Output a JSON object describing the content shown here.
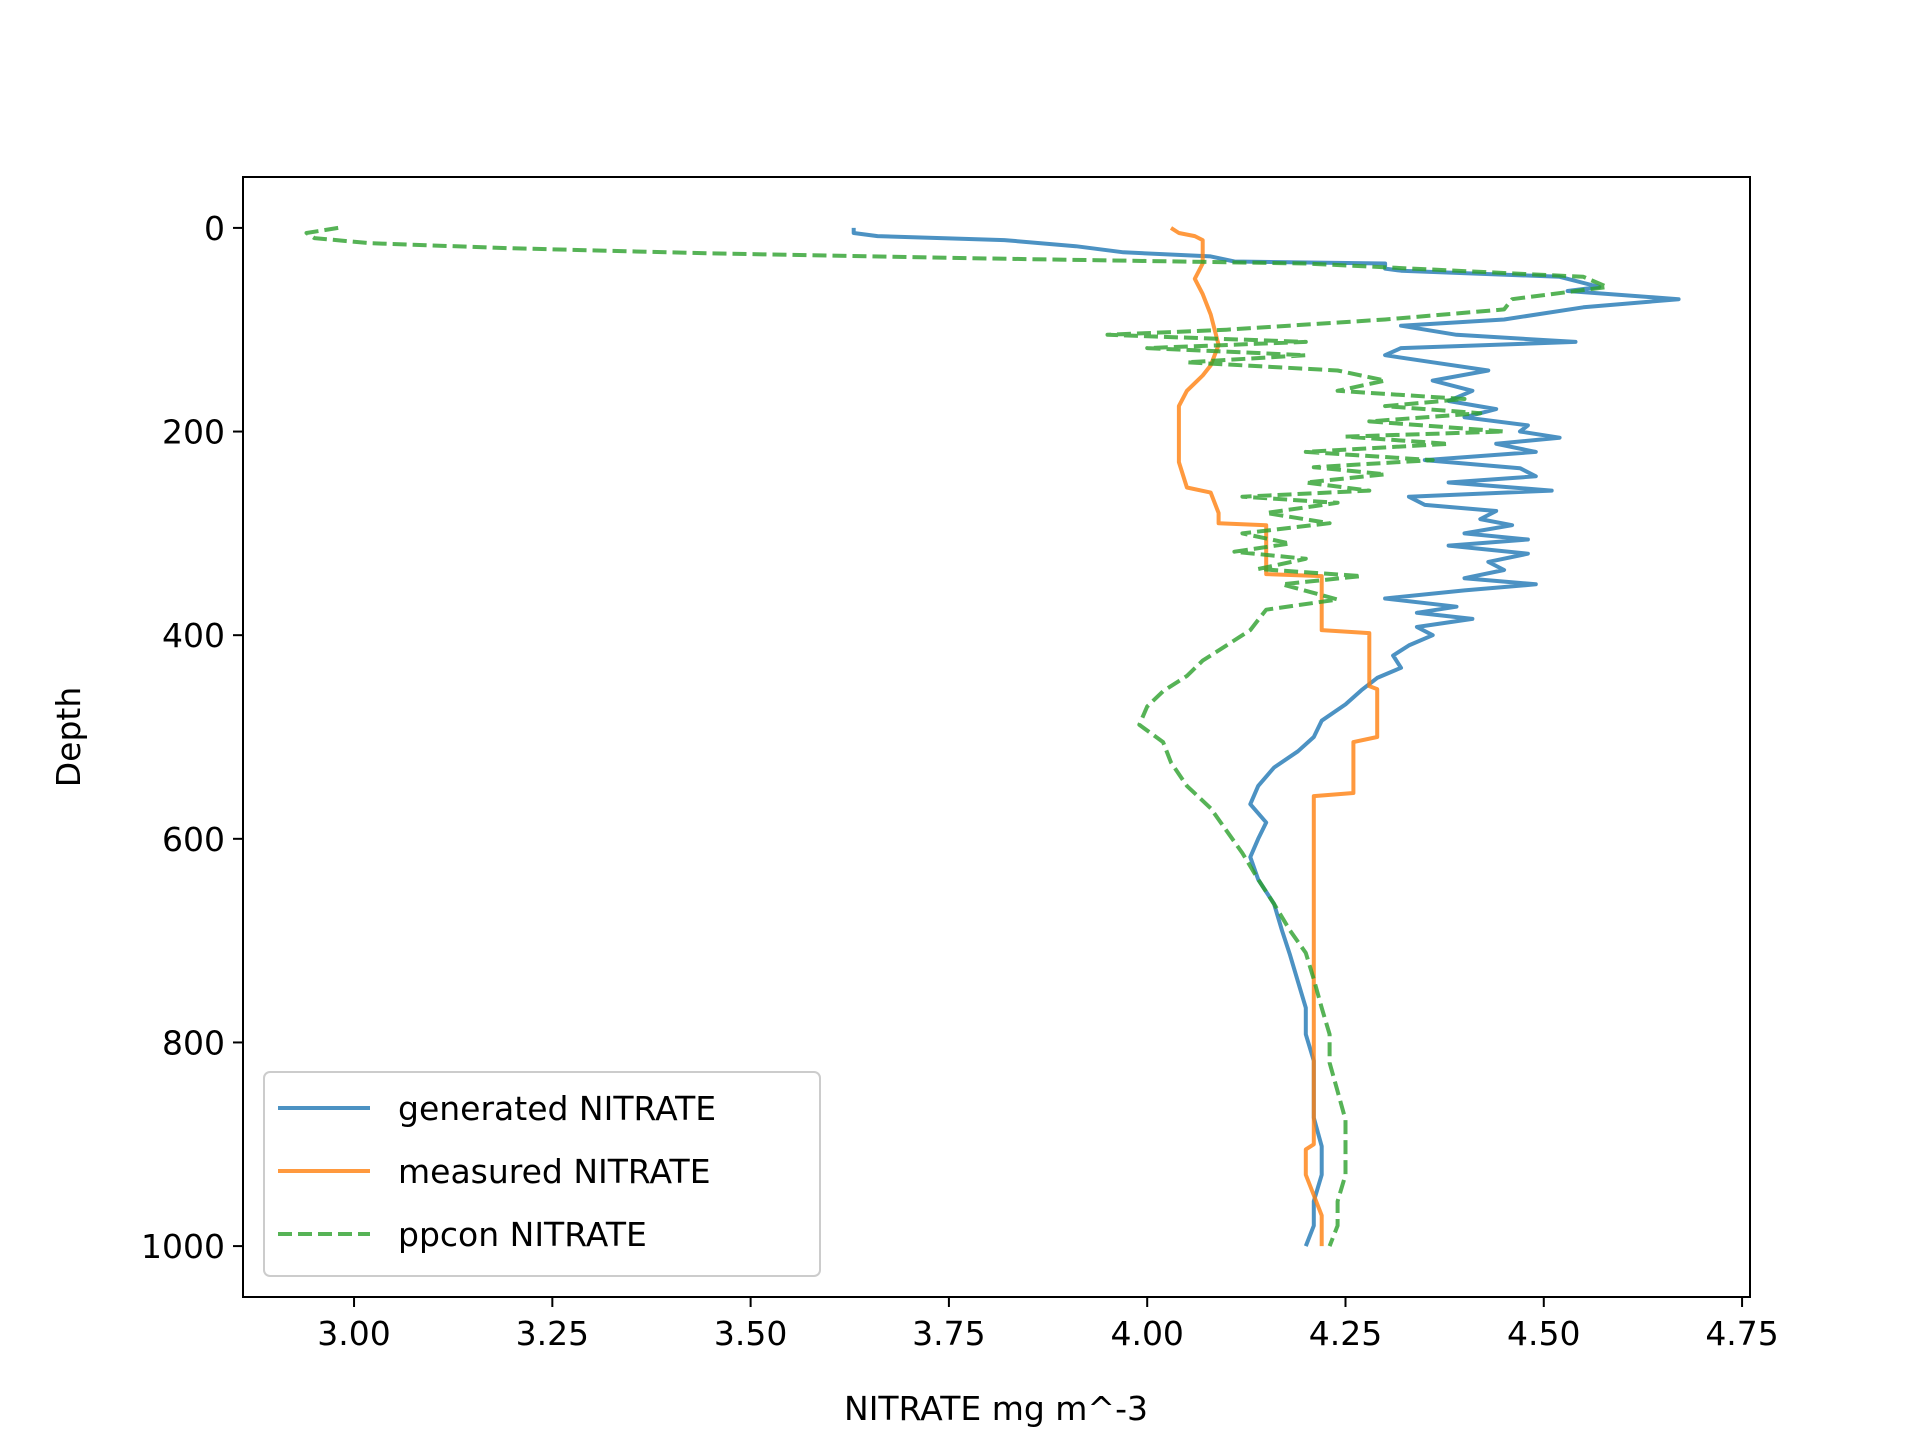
{
  "chart_data": {
    "type": "line",
    "xlabel": "NITRATE mg m^-3",
    "ylabel": "Depth",
    "xlim": [
      2.86,
      4.76
    ],
    "ylim": [
      1050,
      -50
    ],
    "y_inverted": true,
    "x_ticks": [
      3.0,
      3.25,
      3.5,
      3.75,
      4.0,
      4.25,
      4.5,
      4.75
    ],
    "x_tick_labels": [
      "3.00",
      "3.25",
      "3.50",
      "3.75",
      "4.00",
      "4.25",
      "4.50",
      "4.75"
    ],
    "y_ticks": [
      0,
      200,
      400,
      600,
      800,
      1000
    ],
    "y_tick_labels": [
      "0",
      "200",
      "400",
      "600",
      "800",
      "1000"
    ],
    "grid": false,
    "legend_position": "lower-left",
    "series": [
      {
        "name": "generated NITRATE",
        "color": "#1f77b4",
        "dash": "solid",
        "points": [
          [
            3.63,
            0
          ],
          [
            3.63,
            5
          ],
          [
            3.66,
            8
          ],
          [
            3.74,
            10
          ],
          [
            3.82,
            12
          ],
          [
            3.91,
            18
          ],
          [
            3.97,
            24
          ],
          [
            4.08,
            28
          ],
          [
            4.11,
            33
          ],
          [
            4.3,
            35
          ],
          [
            4.3,
            40
          ],
          [
            4.32,
            42
          ],
          [
            4.52,
            48
          ],
          [
            4.57,
            58
          ],
          [
            4.53,
            62
          ],
          [
            4.67,
            70
          ],
          [
            4.55,
            78
          ],
          [
            4.45,
            90
          ],
          [
            4.32,
            96
          ],
          [
            4.39,
            105
          ],
          [
            4.54,
            112
          ],
          [
            4.32,
            118
          ],
          [
            4.3,
            125
          ],
          [
            4.36,
            132
          ],
          [
            4.43,
            140
          ],
          [
            4.36,
            150
          ],
          [
            4.41,
            160
          ],
          [
            4.38,
            170
          ],
          [
            4.44,
            178
          ],
          [
            4.4,
            186
          ],
          [
            4.48,
            194
          ],
          [
            4.47,
            200
          ],
          [
            4.52,
            206
          ],
          [
            4.44,
            212
          ],
          [
            4.49,
            220
          ],
          [
            4.35,
            228
          ],
          [
            4.47,
            236
          ],
          [
            4.49,
            244
          ],
          [
            4.38,
            250
          ],
          [
            4.51,
            258
          ],
          [
            4.33,
            264
          ],
          [
            4.35,
            272
          ],
          [
            4.44,
            278
          ],
          [
            4.42,
            286
          ],
          [
            4.46,
            292
          ],
          [
            4.4,
            300
          ],
          [
            4.48,
            306
          ],
          [
            4.38,
            312
          ],
          [
            4.48,
            320
          ],
          [
            4.43,
            328
          ],
          [
            4.45,
            336
          ],
          [
            4.4,
            344
          ],
          [
            4.49,
            350
          ],
          [
            4.4,
            356
          ],
          [
            4.3,
            364
          ],
          [
            4.39,
            372
          ],
          [
            4.34,
            378
          ],
          [
            4.41,
            384
          ],
          [
            4.34,
            392
          ],
          [
            4.36,
            400
          ],
          [
            4.33,
            410
          ],
          [
            4.31,
            420
          ],
          [
            4.32,
            432
          ],
          [
            4.29,
            442
          ],
          [
            4.27,
            454
          ],
          [
            4.25,
            468
          ],
          [
            4.22,
            484
          ],
          [
            4.21,
            500
          ],
          [
            4.19,
            514
          ],
          [
            4.16,
            530
          ],
          [
            4.14,
            548
          ],
          [
            4.13,
            566
          ],
          [
            4.15,
            584
          ],
          [
            4.14,
            600
          ],
          [
            4.13,
            618
          ],
          [
            4.14,
            640
          ],
          [
            4.16,
            664
          ],
          [
            4.17,
            690
          ],
          [
            4.18,
            714
          ],
          [
            4.19,
            740
          ],
          [
            4.2,
            766
          ],
          [
            4.2,
            792
          ],
          [
            4.21,
            818
          ],
          [
            4.21,
            846
          ],
          [
            4.21,
            874
          ],
          [
            4.22,
            902
          ],
          [
            4.22,
            930
          ],
          [
            4.21,
            956
          ],
          [
            4.21,
            980
          ],
          [
            4.2,
            1000
          ]
        ]
      },
      {
        "name": "measured NITRATE",
        "color": "#ff7f0e",
        "dash": "solid",
        "points": [
          [
            4.03,
            0
          ],
          [
            4.04,
            5
          ],
          [
            4.06,
            8
          ],
          [
            4.07,
            12
          ],
          [
            4.07,
            35
          ],
          [
            4.06,
            50
          ],
          [
            4.07,
            65
          ],
          [
            4.08,
            85
          ],
          [
            4.09,
            115
          ],
          [
            4.08,
            135
          ],
          [
            4.07,
            145
          ],
          [
            4.05,
            160
          ],
          [
            4.04,
            175
          ],
          [
            4.04,
            210
          ],
          [
            4.04,
            230
          ],
          [
            4.05,
            255
          ],
          [
            4.08,
            260
          ],
          [
            4.09,
            280
          ],
          [
            4.09,
            290
          ],
          [
            4.15,
            292
          ],
          [
            4.15,
            340
          ],
          [
            4.22,
            342
          ],
          [
            4.22,
            395
          ],
          [
            4.28,
            398
          ],
          [
            4.28,
            450
          ],
          [
            4.29,
            453
          ],
          [
            4.29,
            500
          ],
          [
            4.26,
            505
          ],
          [
            4.26,
            555
          ],
          [
            4.21,
            558
          ],
          [
            4.21,
            900
          ],
          [
            4.2,
            905
          ],
          [
            4.2,
            930
          ],
          [
            4.21,
            950
          ],
          [
            4.22,
            970
          ],
          [
            4.22,
            1000
          ]
        ]
      },
      {
        "name": "ppcon NITRATE",
        "color": "#2ca02c",
        "dash": "dashed",
        "points": [
          [
            2.98,
            0
          ],
          [
            2.94,
            5
          ],
          [
            2.95,
            10
          ],
          [
            3.02,
            15
          ],
          [
            3.2,
            20
          ],
          [
            3.45,
            25
          ],
          [
            3.8,
            30
          ],
          [
            4.2,
            35
          ],
          [
            4.55,
            48
          ],
          [
            4.58,
            58
          ],
          [
            4.46,
            70
          ],
          [
            4.45,
            80
          ],
          [
            4.3,
            90
          ],
          [
            4.1,
            100
          ],
          [
            3.95,
            105
          ],
          [
            4.2,
            112
          ],
          [
            4.0,
            118
          ],
          [
            4.2,
            125
          ],
          [
            4.05,
            132
          ],
          [
            4.24,
            140
          ],
          [
            4.3,
            150
          ],
          [
            4.24,
            160
          ],
          [
            4.4,
            168
          ],
          [
            4.3,
            175
          ],
          [
            4.42,
            182
          ],
          [
            4.28,
            190
          ],
          [
            4.45,
            200
          ],
          [
            4.25,
            205
          ],
          [
            4.38,
            212
          ],
          [
            4.2,
            220
          ],
          [
            4.36,
            228
          ],
          [
            4.21,
            235
          ],
          [
            4.3,
            242
          ],
          [
            4.2,
            250
          ],
          [
            4.28,
            258
          ],
          [
            4.12,
            264
          ],
          [
            4.24,
            270
          ],
          [
            4.15,
            280
          ],
          [
            4.23,
            290
          ],
          [
            4.12,
            300
          ],
          [
            4.18,
            310
          ],
          [
            4.11,
            318
          ],
          [
            4.2,
            325
          ],
          [
            4.14,
            335
          ],
          [
            4.27,
            342
          ],
          [
            4.17,
            350
          ],
          [
            4.24,
            365
          ],
          [
            4.15,
            375
          ],
          [
            4.14,
            385
          ],
          [
            4.13,
            395
          ],
          [
            4.1,
            410
          ],
          [
            4.07,
            425
          ],
          [
            4.05,
            440
          ],
          [
            4.02,
            455
          ],
          [
            4.0,
            470
          ],
          [
            3.99,
            488
          ],
          [
            4.02,
            505
          ],
          [
            4.03,
            525
          ],
          [
            4.05,
            548
          ],
          [
            4.08,
            570
          ],
          [
            4.1,
            592
          ],
          [
            4.12,
            614
          ],
          [
            4.14,
            640
          ],
          [
            4.16,
            664
          ],
          [
            4.18,
            690
          ],
          [
            4.2,
            712
          ],
          [
            4.21,
            738
          ],
          [
            4.22,
            766
          ],
          [
            4.23,
            792
          ],
          [
            4.23,
            820
          ],
          [
            4.24,
            848
          ],
          [
            4.25,
            876
          ],
          [
            4.25,
            904
          ],
          [
            4.25,
            930
          ],
          [
            4.24,
            956
          ],
          [
            4.24,
            980
          ],
          [
            4.23,
            1000
          ]
        ]
      }
    ]
  }
}
